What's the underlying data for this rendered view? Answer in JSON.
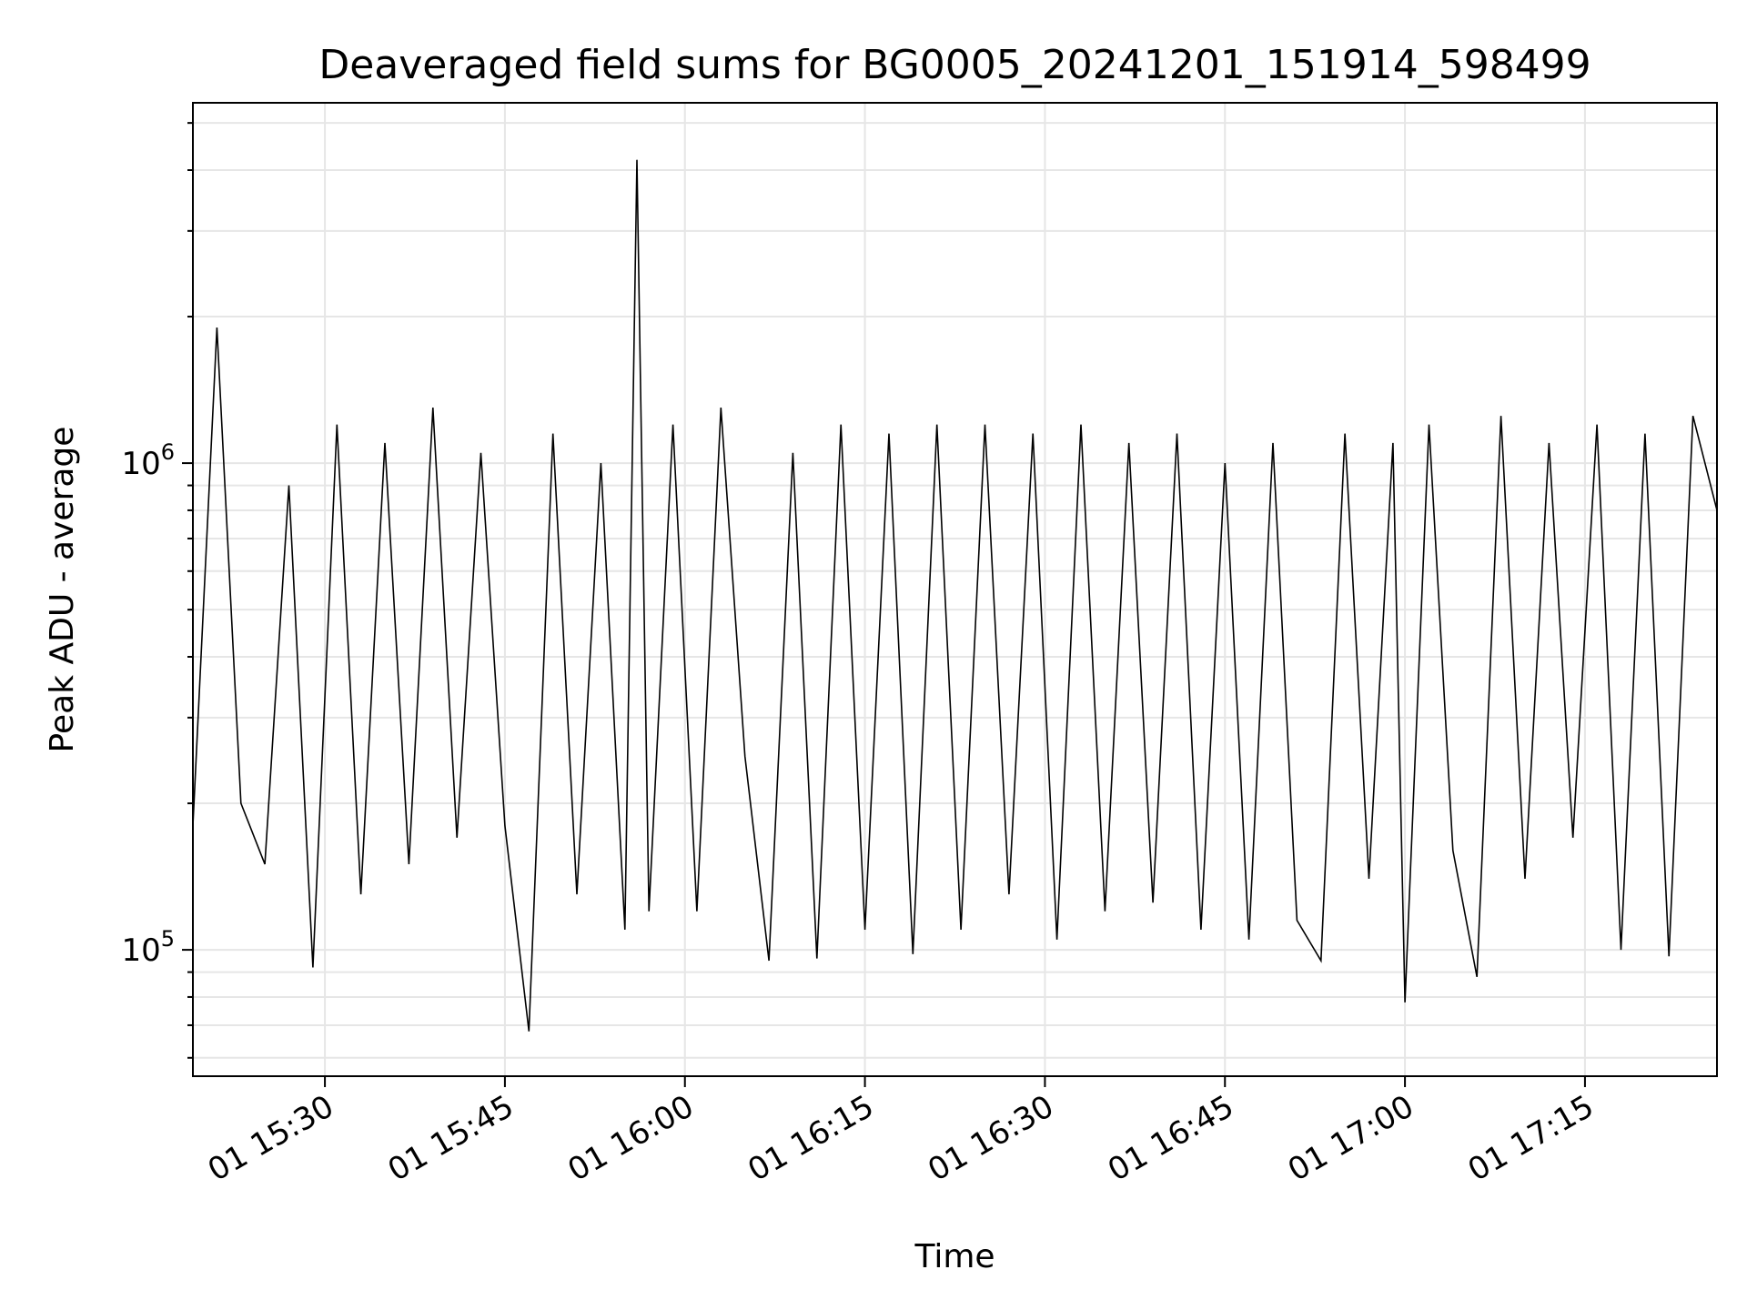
{
  "chart_data": {
    "type": "line",
    "title": "Deaveraged field sums for BG0005_20241201_151914_598499",
    "xlabel": "Time",
    "ylabel": "Peak ADU - average",
    "yscale": "log",
    "ylim": [
      55000,
      5500000
    ],
    "xlim": [
      "01 15:19",
      "01 17:26"
    ],
    "grid": true,
    "line_color": "#000000",
    "x_ticks": [
      "01 15:30",
      "01 15:45",
      "01 16:00",
      "01 16:15",
      "01 16:30",
      "01 16:45",
      "01 17:00",
      "01 17:15"
    ],
    "y_ticks": [
      {
        "value": 100000,
        "base": "10",
        "exp": "5"
      },
      {
        "value": 1000000,
        "base": "10",
        "exp": "6"
      }
    ],
    "series": [
      {
        "x": [
          "01 15:19",
          "01 15:21",
          "01 15:23",
          "01 15:25",
          "01 15:27",
          "01 15:29",
          "01 15:31",
          "01 15:33",
          "01 15:35",
          "01 15:37",
          "01 15:39",
          "01 15:41",
          "01 15:43",
          "01 15:45",
          "01 15:47",
          "01 15:49",
          "01 15:51",
          "01 15:53",
          "01 15:55",
          "01 15:56",
          "01 15:57",
          "01 15:59",
          "01 16:01",
          "01 16:03",
          "01 16:05",
          "01 16:07",
          "01 16:09",
          "01 16:11",
          "01 16:13",
          "01 16:15",
          "01 16:17",
          "01 16:19",
          "01 16:21",
          "01 16:23",
          "01 16:25",
          "01 16:27",
          "01 16:29",
          "01 16:31",
          "01 16:33",
          "01 16:35",
          "01 16:37",
          "01 16:39",
          "01 16:41",
          "01 16:43",
          "01 16:45",
          "01 16:47",
          "01 16:49",
          "01 16:51",
          "01 16:53",
          "01 16:55",
          "01 16:57",
          "01 16:59",
          "01 17:00",
          "01 17:02",
          "01 17:04",
          "01 17:06",
          "01 17:08",
          "01 17:10",
          "01 17:12",
          "01 17:14",
          "01 17:16",
          "01 17:18",
          "01 17:20",
          "01 17:22",
          "01 17:24",
          "01 17:26"
        ],
        "values": [
          180000,
          1900000,
          200000,
          150000,
          900000,
          92000,
          1200000,
          130000,
          1100000,
          150000,
          1300000,
          170000,
          1050000,
          180000,
          68000,
          1150000,
          130000,
          1000000,
          110000,
          4200000,
          120000,
          1200000,
          120000,
          1300000,
          250000,
          95000,
          1050000,
          96000,
          1200000,
          110000,
          1150000,
          98000,
          1200000,
          110000,
          1200000,
          130000,
          1150000,
          105000,
          1200000,
          120000,
          1100000,
          125000,
          1150000,
          110000,
          1000000,
          105000,
          1100000,
          115000,
          95000,
          1150000,
          140000,
          1100000,
          78000,
          1200000,
          160000,
          88000,
          1250000,
          140000,
          1100000,
          170000,
          1200000,
          100000,
          1150000,
          97000,
          1250000,
          800000
        ]
      }
    ]
  }
}
